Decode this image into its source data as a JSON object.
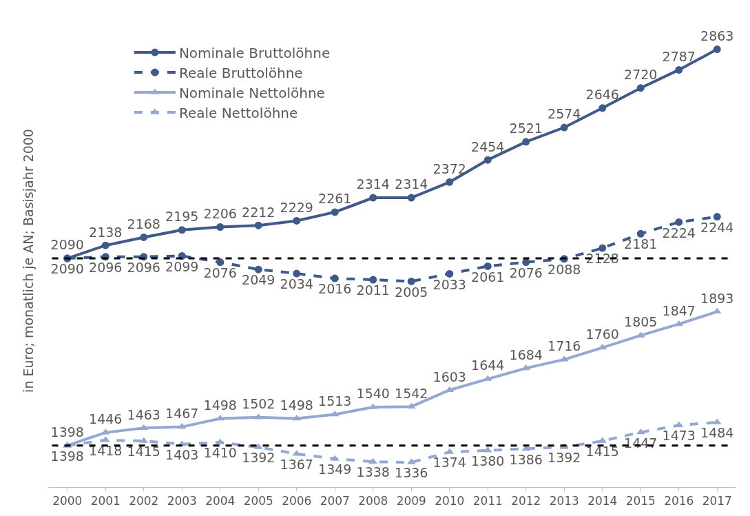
{
  "chart_data": {
    "type": "line",
    "ylabel": "in Euro; monatlich je AN; Basisjahr 2000",
    "categories": [
      "2000",
      "2001",
      "2002",
      "2003",
      "2004",
      "2005",
      "2006",
      "2007",
      "2008",
      "2009",
      "2010",
      "2011",
      "2012",
      "2013",
      "2014",
      "2015",
      "2016",
      "2017"
    ],
    "series": [
      {
        "name": "Nominale Bruttolöhne",
        "color": "#3f5a8a",
        "marker": "circle",
        "line_style": "solid",
        "values": [
          2090,
          2138,
          2168,
          2195,
          2206,
          2212,
          2229,
          2261,
          2314,
          2314,
          2372,
          2454,
          2521,
          2574,
          2646,
          2720,
          2787,
          2863
        ]
      },
      {
        "name": "Reale Bruttolöhne",
        "color": "#3f5a8a",
        "marker": "circle",
        "line_style": "dashed",
        "values": [
          2090,
          2096,
          2096,
          2099,
          2076,
          2049,
          2034,
          2016,
          2011,
          2005,
          2033,
          2061,
          2076,
          2088,
          2128,
          2181,
          2224,
          2244
        ]
      },
      {
        "name": "Nominale Nettolöhne",
        "color": "#94a9d2",
        "marker": "triangle",
        "line_style": "solid",
        "values": [
          1398,
          1446,
          1463,
          1467,
          1498,
          1502,
          1498,
          1513,
          1540,
          1542,
          1603,
          1644,
          1684,
          1716,
          1760,
          1805,
          1847,
          1893
        ]
      },
      {
        "name": "Reale Nettolöhne",
        "color": "#94a9d2",
        "marker": "triangle",
        "line_style": "dashed",
        "values": [
          1398,
          1418,
          1415,
          1403,
          1410,
          1392,
          1367,
          1349,
          1338,
          1336,
          1374,
          1380,
          1386,
          1392,
          1415,
          1447,
          1473,
          1484
        ]
      }
    ],
    "ref_lines": [
      {
        "axis": "y",
        "value": 2090,
        "color": "#000000",
        "line_style": "dashed"
      },
      {
        "axis": "y",
        "value": 1398,
        "color": "#000000",
        "line_style": "dashed"
      }
    ],
    "data_labels": true,
    "legend": "top left"
  }
}
